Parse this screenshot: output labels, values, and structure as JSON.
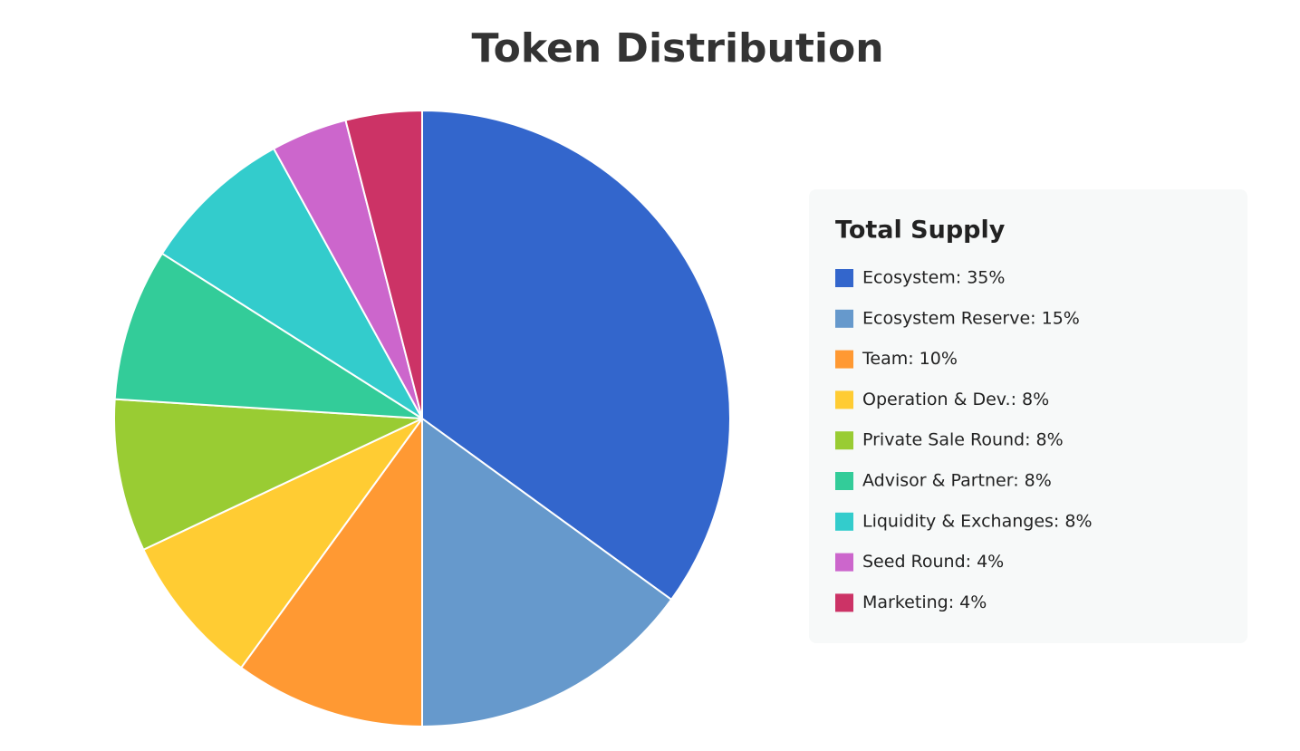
{
  "chart_data": {
    "type": "pie",
    "title": "Token Distribution",
    "legend_title": "Total Supply",
    "categories": [
      "Ecosystem: 35%",
      "Ecosystem Reserve: 15%",
      "Team: 10%",
      "Operation & Dev.: 8%",
      "Private Sale Round: 8%",
      "Advisor & Partner: 8%",
      "Liquidity & Exchanges: 8%",
      "Seed Round: 4%",
      "Marketing: 4%"
    ],
    "values": [
      35,
      15,
      10,
      8,
      8,
      8,
      8,
      4,
      4
    ],
    "colors": [
      "#3366cc",
      "#6699cc",
      "#ff9933",
      "#ffcc33",
      "#99cc33",
      "#33cc99",
      "#33cccc",
      "#cc66cc",
      "#cc3366"
    ],
    "legend": "right"
  }
}
